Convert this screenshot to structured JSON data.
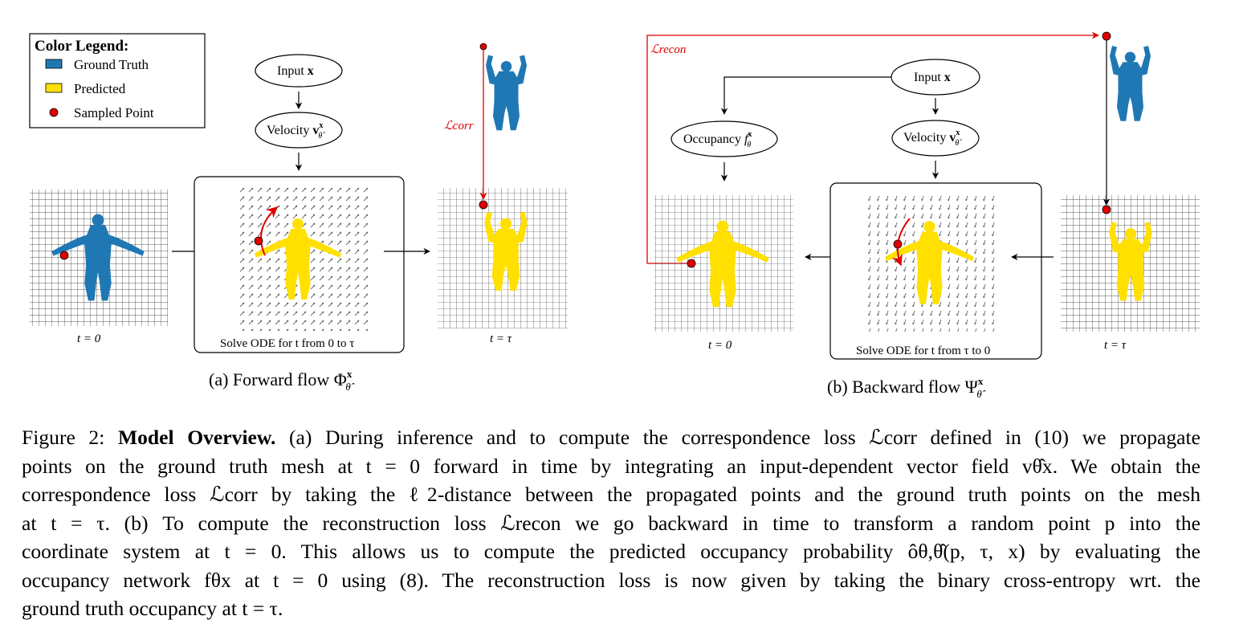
{
  "figure": {
    "legend": {
      "title": "Color Legend:",
      "items": [
        {
          "label": "Ground Truth",
          "color": "#1f78b4"
        },
        {
          "label": "Predicted",
          "color": "#ffe000"
        },
        {
          "label": "Sampled Point",
          "color": "#e00000"
        }
      ]
    },
    "forward": {
      "input_label": "Input",
      "input_var": "x",
      "velocity_label": "Velocity",
      "velocity_var": "v",
      "ode_label": "Solve ODE for t from 0 to τ",
      "t0_label": "t = 0",
      "ttau_label": "t = τ",
      "loss_label": "ℒcorr",
      "subcaption": "(a) Forward flow Φ"
    },
    "backward": {
      "input_label": "Input",
      "input_var": "x",
      "velocity_label": "Velocity",
      "velocity_var": "v",
      "occupancy_label": "Occupancy",
      "occupancy_var": "f",
      "ode_label": "Solve ODE for t from τ to 0",
      "t0_label": "t = 0",
      "ttau_label": "t = τ",
      "loss_label": "ℒrecon",
      "subcaption": "(b) Backward flow Ψ"
    },
    "colors": {
      "ground_truth": "#1f78b4",
      "predicted": "#ffe000",
      "sampled_point": "#e00000",
      "loss_arrow": "#e00000"
    }
  },
  "caption": {
    "prefix": "Figure 2:",
    "title": "Model Overview.",
    "lines": [
      "(a) During inference and to compute the correspondence loss ℒcorr defined in (10) we propagate",
      "points on the ground truth mesh at t = 0 forward in time by integrating an input-dependent vector field vθ̂x. We obtain the",
      "correspondence loss ℒcorr by taking the ℓ2-distance between the propagated points and the ground truth points on the mesh",
      "at t = τ. (b) To compute the reconstruction loss ℒrecon we go backward in time to transform a random point p into the",
      "coordinate system at t = 0. This allows us to compute the predicted occupancy probability ôθ,θ̂(p, τ, x) by evaluating the",
      "occupancy network fθx at t = 0 using (8). The reconstruction loss is now given by taking the binary cross-entropy wrt. the",
      "ground truth occupancy at t = τ."
    ],
    "ref_10": "10",
    "ref_8": "8"
  }
}
